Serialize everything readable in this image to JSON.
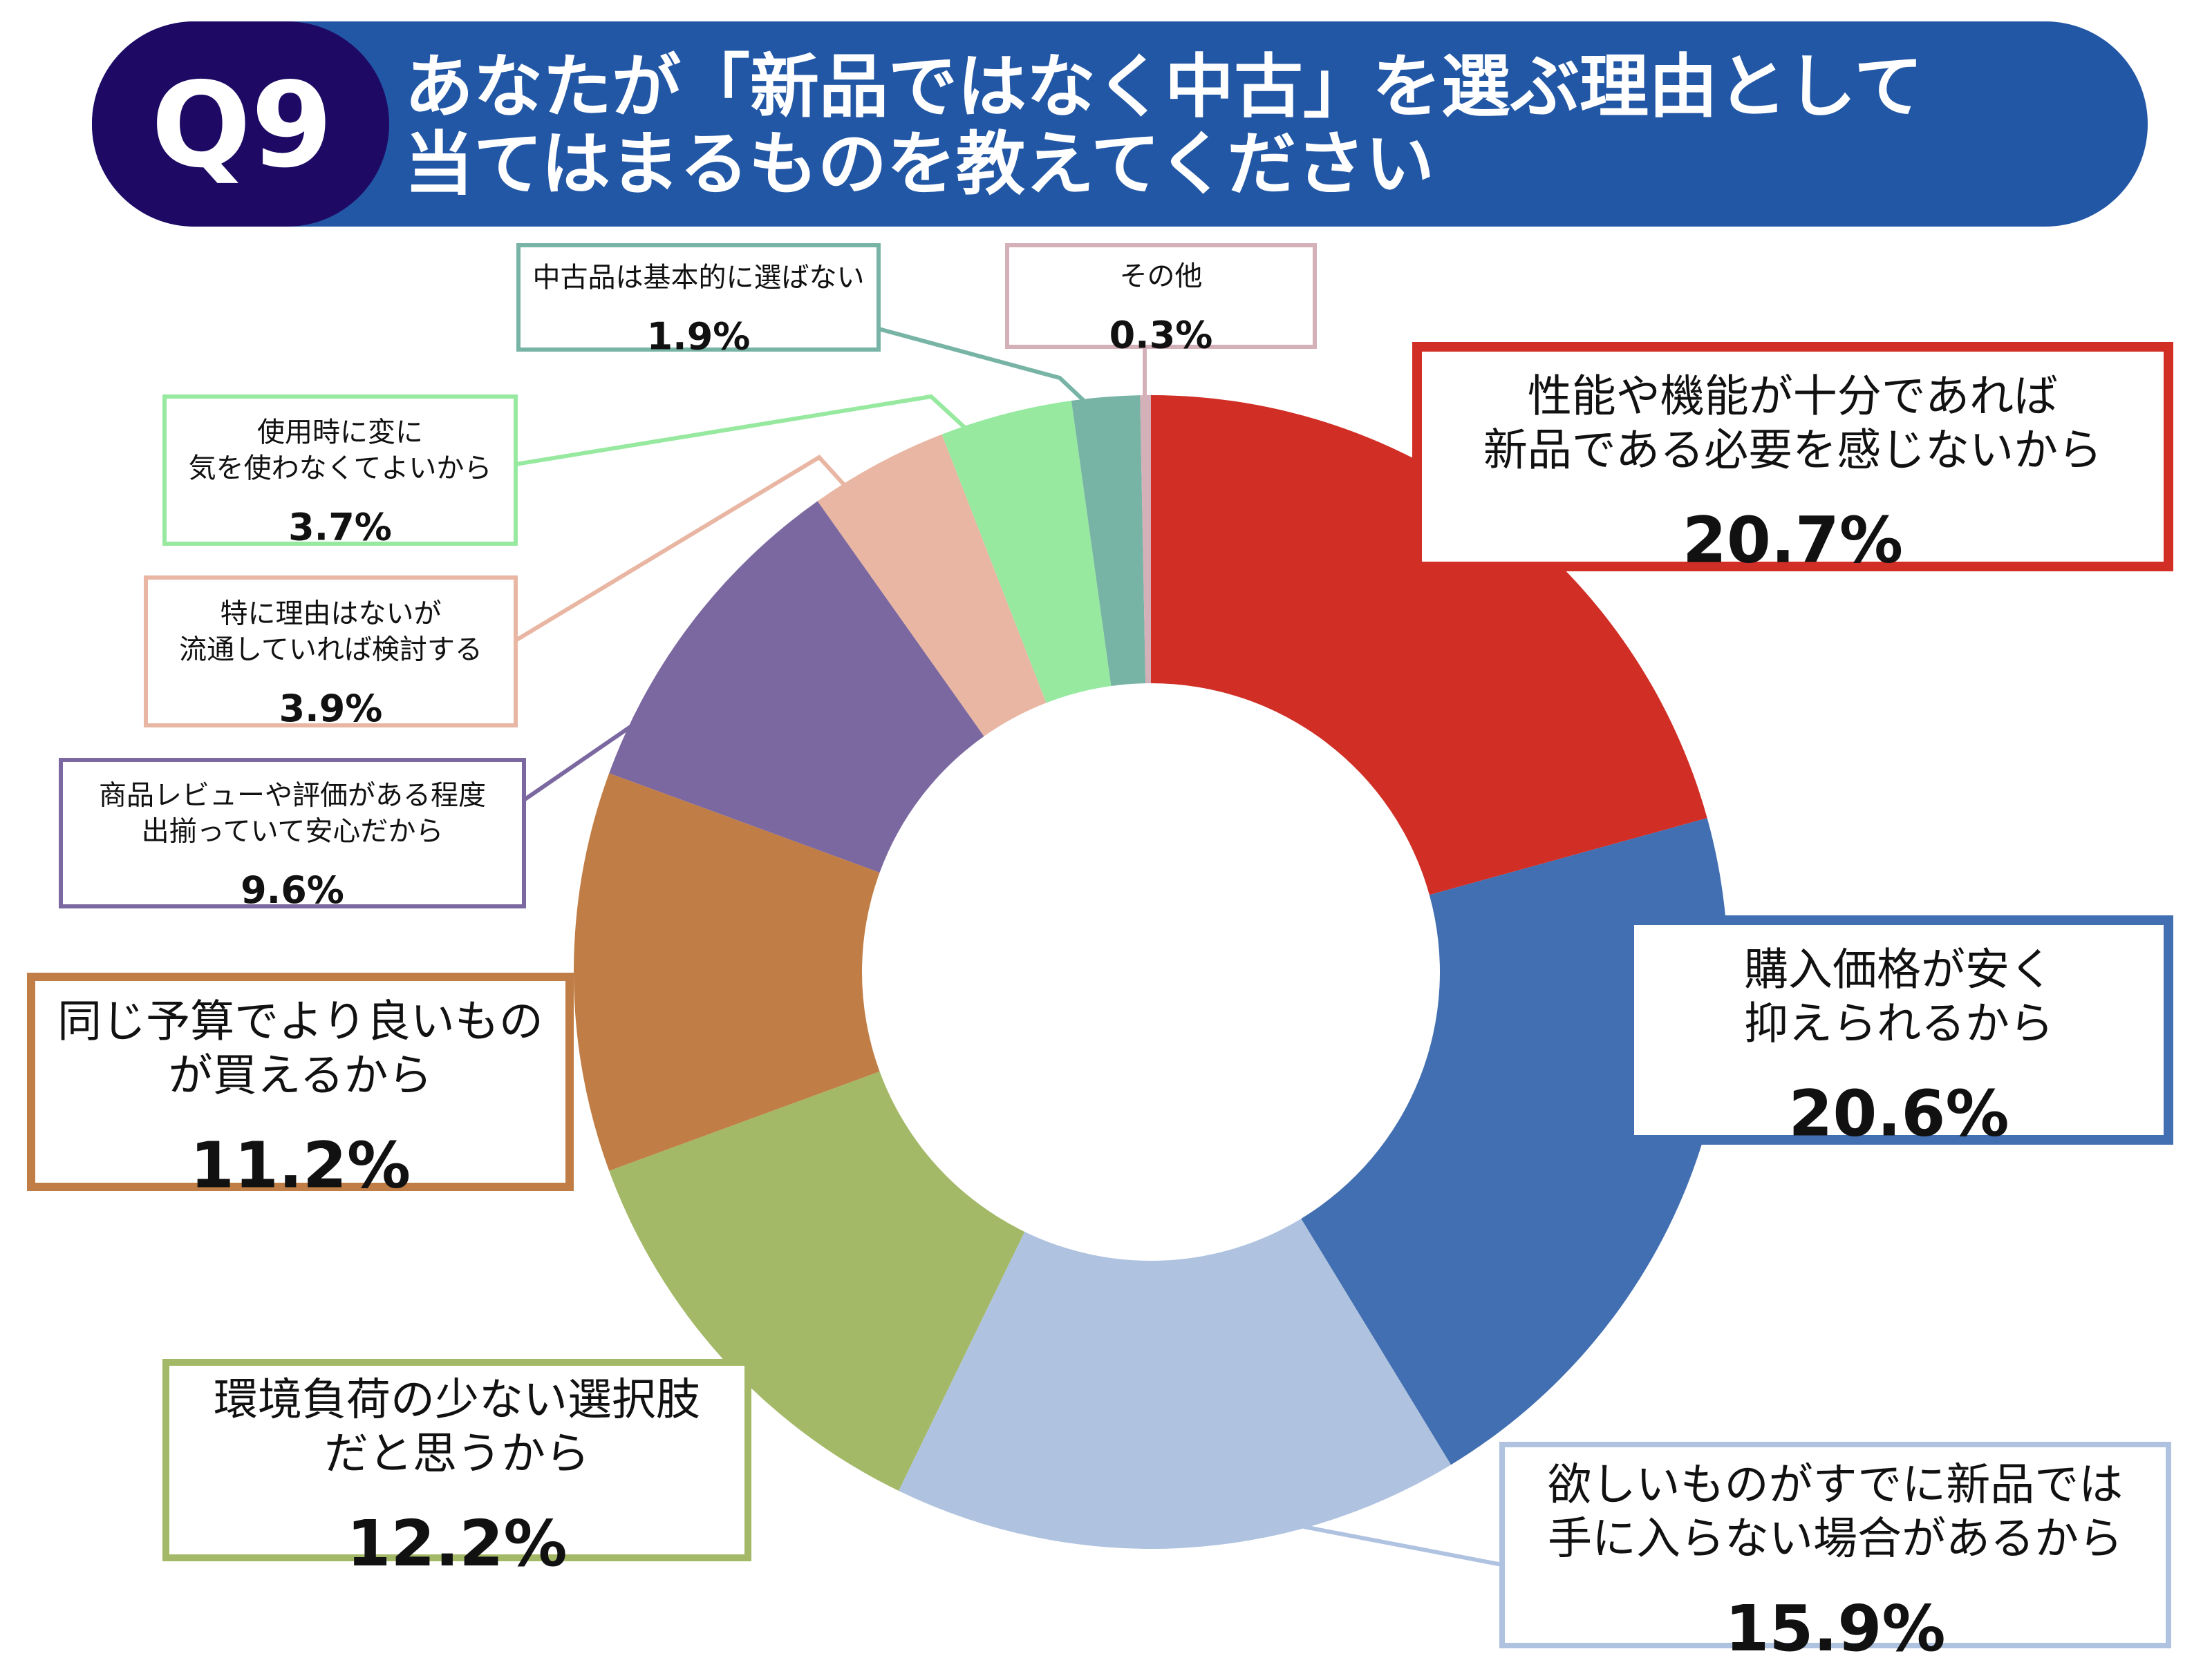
{
  "header": {
    "question_no": "Q9",
    "title_line1": "あなたが「新品ではなく中古」を選ぶ理由として",
    "title_line2": "当てはまるものを教えてください",
    "colors": {
      "circle": "#1E0A64",
      "bar": "#2257A5"
    }
  },
  "chart_data": {
    "type": "pie",
    "style": "donut",
    "start": "12 o'clock",
    "direction": "clockwise",
    "unit": "%",
    "slices": [
      {
        "label_lines": [
          "性能や機能が十分であれば",
          "新品である必要を感じないから"
        ],
        "value": 20.7,
        "value_label": "20.7%",
        "color": "#D12E26"
      },
      {
        "label_lines": [
          "購入価格が安く",
          "抑えられるから"
        ],
        "value": 20.6,
        "value_label": "20.6%",
        "color": "#426FB1"
      },
      {
        "label_lines": [
          "欲しいものがすでに新品では",
          "手に入らない場合があるから"
        ],
        "value": 15.9,
        "value_label": "15.9%",
        "color": "#AFC3E0"
      },
      {
        "label_lines": [
          "環境負荷の少ない選択肢",
          "だと思うから"
        ],
        "value": 12.2,
        "value_label": "12.2%",
        "color": "#A4B967"
      },
      {
        "label_lines": [
          "同じ予算でより良いもの",
          "が買えるから"
        ],
        "value": 11.2,
        "value_label": "11.2%",
        "color": "#C07E46"
      },
      {
        "label_lines": [
          "商品レビューや評価がある程度",
          "出揃っていて安心だから"
        ],
        "value": 9.6,
        "value_label": "9.6%",
        "color": "#7B68A0"
      },
      {
        "label_lines": [
          "特に理由はないが",
          "流通していれば検討する"
        ],
        "value": 3.9,
        "value_label": "3.9%",
        "color": "#E8B6A2"
      },
      {
        "label_lines": [
          "使用時に変に",
          "気を使わなくてよいから"
        ],
        "value": 3.7,
        "value_label": "3.7%",
        "color": "#97E9A0"
      },
      {
        "label_lines": [
          "中古品は基本的に選ばない"
        ],
        "value": 1.9,
        "value_label": "1.9%",
        "color": "#78B4A5"
      },
      {
        "label_lines": [
          "その他"
        ],
        "value": 0.3,
        "value_label": "0.3%",
        "color": "#D4B0B8"
      }
    ]
  }
}
